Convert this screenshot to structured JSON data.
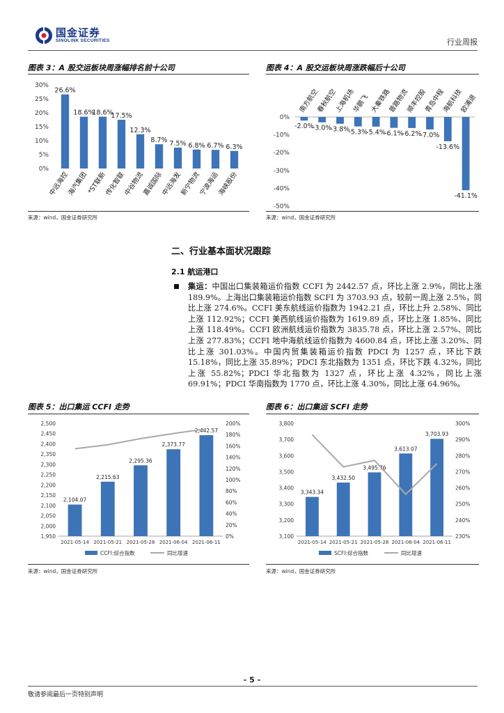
{
  "header": {
    "logo_cn": "国金证券",
    "logo_en": "SINOLINK SECURITIES",
    "right_label": "行业周报"
  },
  "fig3": {
    "title": "图表 3：A 股交运板块周涨幅排名前十公司",
    "source": "来源：wind，国金证券研究所",
    "chart_data": {
      "type": "bar",
      "categories": [
        "中远海控",
        "海汽集团",
        "*ST联新",
        "传化智联",
        "中谷物流",
        "嘉诚国际",
        "中远海发",
        "新宁物流",
        "宁波海运",
        "海峡股份"
      ],
      "values": [
        26.6,
        18.6,
        18.6,
        17.5,
        12.3,
        8.7,
        7.5,
        6.8,
        6.7,
        6.3
      ],
      "value_labels": [
        "26.6%",
        "18.6%",
        "18.6%",
        "17.5%",
        "12.3%",
        "8.7%",
        "7.5%",
        "6.8%",
        "6.7%",
        "6.3%"
      ],
      "y_ticks": [
        "0%",
        "5%",
        "10%",
        "15%",
        "20%",
        "25%",
        "30%"
      ],
      "ylim": [
        0,
        30
      ],
      "color": "#3d74b8"
    }
  },
  "fig4": {
    "title": "图表 4：A 股交运板块周涨跌幅后十公司",
    "source": "来源：wind，国金证券研究所",
    "chart_data": {
      "type": "bar",
      "categories": [
        "南方航空",
        "春秋航空",
        "上海机场",
        "华鹏飞",
        "大秦铁路",
        "普路物流",
        "顺丰控股",
        "青岛中程",
        "海航科技",
        "欧浦退"
      ],
      "values": [
        -2.0,
        -3.0,
        -3.8,
        -5.3,
        -5.4,
        -6.1,
        -6.2,
        -7.0,
        -13.6,
        -41.1
      ],
      "value_labels": [
        "-2.0%",
        "-3.0%",
        "-3.8%",
        "-5.3%",
        "-5.4%",
        "-6.1%",
        "-6.2%",
        "-7.0%",
        "-13.6%",
        "-41.1%"
      ],
      "y_ticks": [
        "0%",
        "-10%",
        "-20%",
        "-30%",
        "-40%",
        "-50%"
      ],
      "ylim": [
        -50,
        0
      ],
      "color": "#3d74b8"
    }
  },
  "section": {
    "title": "二、行业基本面状况跟踪",
    "subtitle": "2.1 航运港口",
    "bullet_lead": "集运：",
    "bullet_text": "中国出口集装箱运价指数 CCFI 为 2442.57 点，环比上涨 2.9%，同比上涨 189.9%。上海出口集装箱运价指数 SCFI 为 3703.93 点，较前一周上涨 2.5%，同比上涨 274.6%。CCFI 美东航线运价指数为 1942.21 点，环比上升 2.58%、同比上涨 112.92%；CCFI 美西航线运价指数为 1619.89 点，环比上涨 1.85%、同比上涨 118.49%。CCFI 欧洲航线运价指数为 3835.78 点，环比上涨 2.57%、同比上涨 277.83%；CCFI 地中海航线运价指数为 4600.84 点，环比上涨 3.20%、同比上涨 301.03%。中国内贸集装箱运价指数 PDCI 为 1257 点，环比下跌 15.18%，同比上涨 35.89%；PDCI 东北指数为 1351 点，环比下跌 4.32%，同比上涨 55.82%；PDCI 华北指数为 1327 点，环比上涨 4.32%，同比上涨 69.91%；PDCI 华南指数为 1770 点，环比上涨 4.30%，同比上涨 64.96%。"
  },
  "fig5": {
    "title": "图表 5：出口集运 CCFI 走势",
    "source": "来源：wind，国金证券研究所",
    "chart_data": {
      "type": "bar",
      "categories": [
        "2021-05-14",
        "2021-05-21",
        "2021-05-28",
        "2021-06-04",
        "2021-06-11"
      ],
      "series": [
        {
          "name": "CCFI:综合指数",
          "type": "bar",
          "values": [
            2104.07,
            2215.63,
            2295.36,
            2373.77,
            2442.57
          ],
          "value_labels": [
            "2,104.07",
            "2,215.63",
            "2,295.36",
            "2,373.77",
            "2,442.57"
          ],
          "color": "#3d74b8"
        },
        {
          "name": "同比增速",
          "type": "line",
          "axis": "right",
          "values": [
            155,
            162,
            173,
            182,
            190
          ],
          "color": "#a9a9a9"
        }
      ],
      "y_left_ticks": [
        "1,950",
        "2,000",
        "2,050",
        "2,100",
        "2,150",
        "2,200",
        "2,250",
        "2,300",
        "2,350",
        "2,400",
        "2,450",
        "2,500"
      ],
      "y_right_ticks": [
        "0%",
        "20%",
        "40%",
        "60%",
        "80%",
        "100%",
        "120%",
        "140%",
        "160%",
        "180%",
        "200%"
      ],
      "ylim_left": [
        1950,
        2500
      ],
      "ylim_right": [
        0,
        200
      ]
    }
  },
  "fig6": {
    "title": "图表 6：出口集运 SCFI 走势",
    "source": "来源：wind，国金证券研究所",
    "chart_data": {
      "type": "bar",
      "categories": [
        "2021-05-14",
        "2021-05-21",
        "2021-05-28",
        "2021-06-04",
        "2021-06-11"
      ],
      "series": [
        {
          "name": "SCFI:综合指数",
          "type": "bar",
          "values": [
            3343.34,
            3432.5,
            3495.76,
            3613.07,
            3703.93
          ],
          "value_labels": [
            "3,343.34",
            "3,432.50",
            "3,495.76",
            "3,613.07",
            "3,703.93"
          ],
          "color": "#3d74b8"
        },
        {
          "name": "同比增速",
          "type": "line",
          "axis": "right",
          "values": [
            293,
            273,
            277,
            256,
            275
          ],
          "color": "#a9a9a9"
        }
      ],
      "y_left_ticks": [
        "3,100",
        "3,200",
        "3,300",
        "3,400",
        "3,500",
        "3,600",
        "3,700",
        "3,800"
      ],
      "y_right_ticks": [
        "230%",
        "240%",
        "250%",
        "260%",
        "270%",
        "280%",
        "290%",
        "300%"
      ],
      "ylim_left": [
        3100,
        3800
      ],
      "ylim_right": [
        230,
        300
      ]
    }
  },
  "footer": {
    "page_number": "- 5 -",
    "note": "敬请参阅最后一页特别声明"
  }
}
